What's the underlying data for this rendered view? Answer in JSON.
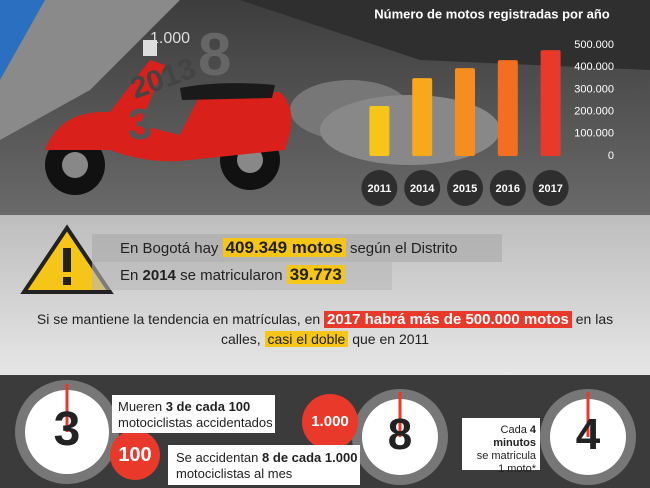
{
  "chart_data": {
    "type": "bar",
    "title": "Número de motos registradas por año",
    "categories": [
      "2011",
      "2014",
      "2015",
      "2016",
      "2017"
    ],
    "values": [
      225000,
      351000,
      396000,
      432000,
      477000
    ],
    "colors": [
      "#f5c518",
      "#f7a81b",
      "#f58d1f",
      "#f26f22",
      "#e8392b"
    ],
    "ylim": [
      0,
      500000
    ],
    "yticks": [
      0,
      {
        "value": 100000,
        "label": "100.000"
      },
      {
        "value": 200000,
        "label": "200.000"
      },
      {
        "value": 300000,
        "label": "300.000"
      },
      {
        "value": 400000,
        "label": "400.000"
      },
      {
        "value": 500000,
        "label": "500.000"
      }
    ]
  },
  "decor": [
    "1.000",
    "2013",
    "8",
    "3"
  ],
  "alert": {
    "line1": [
      "En Bogotá hay",
      "409.349 motos",
      "según el Distrito"
    ],
    "line2": [
      "En",
      "2014",
      "se matricularon",
      "39.773"
    ]
  },
  "trend": {
    "line1": [
      "Si se mantiene la tendencia en matrículas, en",
      "2017 habrá más de 500.000 motos",
      "en las"
    ],
    "line2": [
      "calles,",
      "casi el doble",
      "que en 2011"
    ]
  },
  "stats": {
    "deaths": {
      "clock": "3",
      "text": [
        "Mueren",
        "3 de cada 100",
        "motociclistas accidentados"
      ],
      "badge": "100"
    },
    "accidents": {
      "clock": "8",
      "text": [
        "Se accidentan",
        "8 de cada 1.000",
        "motociclistas al mes"
      ],
      "badge": "1.000"
    },
    "registrations": {
      "clock": "4",
      "text": [
        "Cada",
        "4 minutos",
        "se matricula",
        "1 moto*"
      ]
    }
  }
}
